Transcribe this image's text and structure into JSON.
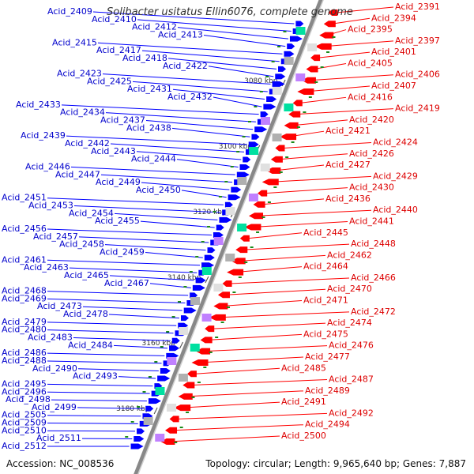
{
  "title": "Solibacter usitatus Ellin6076, complete genome",
  "footer": {
    "accession": "Accession: NC_008536",
    "summary": "Topology: circular; Length: 9,965,640 bp; Genes: 7,887"
  },
  "colors": {
    "backbone": "#888888",
    "forward_strand": "#0000ff",
    "reverse_strand": "#ff0000",
    "rna": "#1a8a1a",
    "label_forward": "#0000cc",
    "label_reverse": "#dd0000"
  },
  "scale": {
    "unit": "kbp",
    "ticks": [
      3080,
      3100,
      3120,
      3140,
      3160,
      3180
    ],
    "labels": [
      "3080 kbp",
      "3100 kbp",
      "3120 kbp",
      "3140 kbp",
      "3160 kbp",
      "3180 kbp"
    ]
  },
  "forward_genes": [
    "Acid_2409",
    "Acid_2410",
    "Acid_2412",
    "Acid_2413",
    "Acid_2415",
    "Acid_2417",
    "Acid_2418",
    "Acid_2422",
    "Acid_2423",
    "Acid_2425",
    "Acid_2431",
    "Acid_2432",
    "Acid_2433",
    "Acid_2434",
    "Acid_2437",
    "Acid_2438",
    "Acid_2439",
    "Acid_2442",
    "Acid_2443",
    "Acid_2444",
    "Acid_2446",
    "Acid_2447",
    "Acid_2449",
    "Acid_2450",
    "Acid_2451",
    "Acid_2453",
    "Acid_2454",
    "Acid_2455",
    "Acid_2456",
    "Acid_2457",
    "Acid_2458",
    "Acid_2459",
    "Acid_2461",
    "Acid_2463",
    "Acid_2465",
    "Acid_2467",
    "Acid_2468",
    "Acid_2469",
    "Acid_2473",
    "Acid_2478",
    "Acid_2479",
    "Acid_2480",
    "Acid_2483",
    "Acid_2484",
    "Acid_2486",
    "Acid_2488",
    "Acid_2490",
    "Acid_2493",
    "Acid_2495",
    "Acid_2496",
    "Acid_2498",
    "Acid_2499",
    "Acid_2505",
    "Acid_2509",
    "Acid_2510",
    "Acid_2511",
    "Acid_2512"
  ],
  "reverse_genes": [
    "Acid_2391",
    "Acid_2394",
    "Acid_2395",
    "Acid_2397",
    "Acid_2401",
    "Acid_2405",
    "Acid_2406",
    "Acid_2407",
    "Acid_2416",
    "Acid_2419",
    "Acid_2420",
    "Acid_2421",
    "Acid_2424",
    "Acid_2426",
    "Acid_2427",
    "Acid_2429",
    "Acid_2430",
    "Acid_2436",
    "Acid_2440",
    "Acid_2441",
    "Acid_2445",
    "Acid_2448",
    "Acid_2462",
    "Acid_2464",
    "Acid_2466",
    "Acid_2470",
    "Acid_2471",
    "Acid_2472",
    "Acid_2474",
    "Acid_2475",
    "Acid_2476",
    "Acid_2477",
    "Acid_2485",
    "Acid_2487",
    "Acid_2489",
    "Acid_2491",
    "Acid_2492",
    "Acid_2494",
    "Acid_2500"
  ]
}
